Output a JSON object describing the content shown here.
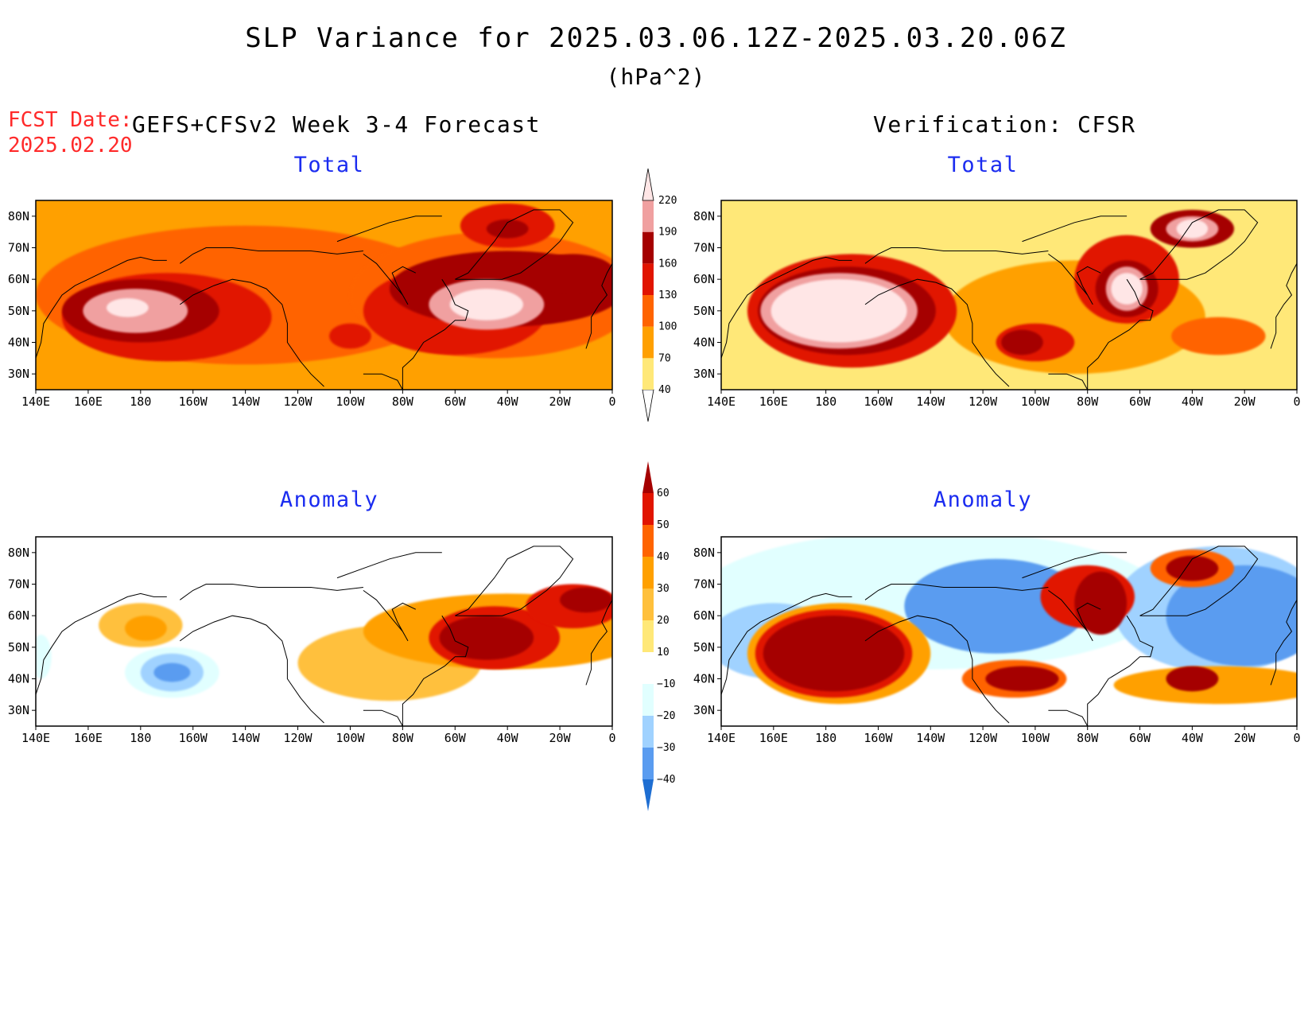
{
  "header": {
    "title": "SLP Variance for 2025.03.06.12Z-2025.03.20.06Z",
    "units": "(hPa^2)",
    "fcst_label": "FCST Date:",
    "fcst_date": "2025.02.20",
    "forecast_title": "GEFS+CFSv2 Week 3-4 Forecast",
    "verification_title": "Verification: CFSR"
  },
  "panels": [
    {
      "id": "fcst-total",
      "title": "Total"
    },
    {
      "id": "verif-total",
      "title": "Total"
    },
    {
      "id": "fcst-anom",
      "title": "Anomaly"
    },
    {
      "id": "verif-anom",
      "title": "Anomaly"
    }
  ],
  "axes": {
    "lon_labels": [
      "140E",
      "160E",
      "180",
      "160W",
      "140W",
      "120W",
      "100W",
      "80W",
      "60W",
      "40W",
      "20W",
      "0"
    ],
    "lat_labels": [
      "80N",
      "70N",
      "60N",
      "50N",
      "40N",
      "30N"
    ]
  },
  "colorbars": {
    "total": {
      "levels": [
        "40",
        "70",
        "100",
        "130",
        "160",
        "190",
        "220"
      ],
      "colors": [
        "#ffffff",
        "#ffe878",
        "#ffa000",
        "#ff6400",
        "#e11400",
        "#a50000",
        "#f0a0a0",
        "#ffe6e6"
      ]
    },
    "anomaly": {
      "levels": [
        "60",
        "50",
        "40",
        "30",
        "20",
        "10",
        "-10",
        "-20",
        "-30",
        "-40"
      ],
      "colors_top_to_bottom": [
        "#a50000",
        "#e11400",
        "#ff6400",
        "#ffa000",
        "#ffc03c",
        "#ffe878",
        "#ffffff",
        "#e1ffff",
        "#a0d2ff",
        "#5a9cf0",
        "#1e6ed2"
      ]
    }
  },
  "chart_data": [
    {
      "type": "heatmap",
      "title": "Total",
      "source": "GEFS+CFSv2 Week 3-4 Forecast",
      "x_range": [
        "140E",
        "0"
      ],
      "y_range": [
        "25N",
        "85N"
      ],
      "features": [
        {
          "center": [
            "175E",
            "50N"
          ],
          "value": 220
        },
        {
          "center": [
            "50W",
            "50N"
          ],
          "value": 220
        },
        {
          "center": [
            "40W",
            "75N"
          ],
          "value": 160
        },
        {
          "center": [
            "15W",
            "62N"
          ],
          "value": 160
        },
        {
          "center": [
            "100W",
            "40N"
          ],
          "value": 130
        }
      ]
    },
    {
      "type": "heatmap",
      "title": "Total",
      "source": "Verification: CFSR",
      "x_range": [
        "140E",
        "0"
      ],
      "y_range": [
        "25N",
        "85N"
      ],
      "features": [
        {
          "center": [
            "170E",
            "50N"
          ],
          "value": 220
        },
        {
          "center": [
            "65W",
            "57N"
          ],
          "value": 220
        },
        {
          "center": [
            "40W",
            "75N"
          ],
          "value": 220
        },
        {
          "center": [
            "100W",
            "40N"
          ],
          "value": 160
        }
      ]
    },
    {
      "type": "heatmap",
      "title": "Anomaly",
      "source": "GEFS+CFSv2 Week 3-4 Forecast",
      "x_range": [
        "140E",
        "0"
      ],
      "y_range": [
        "25N",
        "85N"
      ],
      "features": [
        {
          "center": [
            "50W",
            "52N"
          ],
          "value": 60
        },
        {
          "center": [
            "10W",
            "65N"
          ],
          "value": 50
        },
        {
          "center": [
            "175E",
            "56N"
          ],
          "value": 30
        },
        {
          "center": [
            "170W",
            "42N"
          ],
          "value": -40
        },
        {
          "center": [
            "138E",
            "47N"
          ],
          "value": -30
        }
      ]
    },
    {
      "type": "heatmap",
      "title": "Anomaly",
      "source": "Verification: CFSR",
      "x_range": [
        "140E",
        "0"
      ],
      "y_range": [
        "25N",
        "85N"
      ],
      "features": [
        {
          "center": [
            "170E",
            "47N"
          ],
          "value": 60
        },
        {
          "center": [
            "75W",
            "65N"
          ],
          "value": 60
        },
        {
          "center": [
            "40W",
            "75N"
          ],
          "value": 60
        },
        {
          "center": [
            "105W",
            "40N"
          ],
          "value": 60
        },
        {
          "center": [
            "40W",
            "40N"
          ],
          "value": 50
        },
        {
          "center": [
            "110W",
            "62N"
          ],
          "value": -40
        },
        {
          "center": [
            "20W",
            "60N"
          ],
          "value": -40
        }
      ]
    }
  ]
}
